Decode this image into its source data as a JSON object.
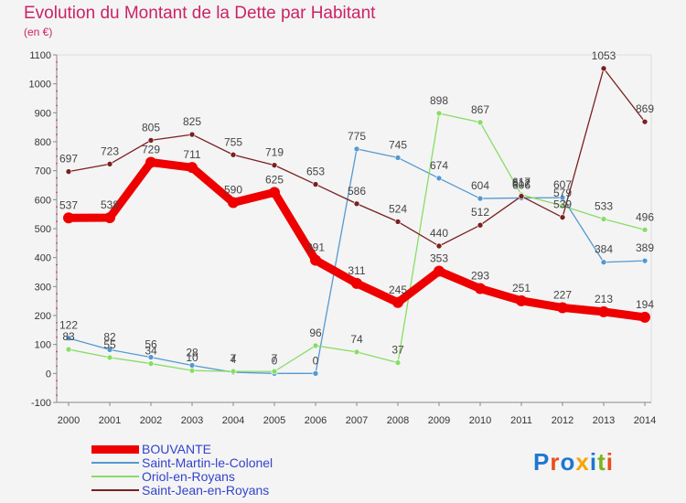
{
  "header": {
    "title": "Evolution du Montant de la Dette par Habitant",
    "unit": "(en €)"
  },
  "logo": {
    "text": "Proxiti",
    "letters": [
      "P",
      "r",
      "o",
      "x",
      "i",
      "t",
      "i"
    ],
    "colors": [
      "#1f77d0",
      "#e94e1b",
      "#1f77d0",
      "#f7a400",
      "#1f77d0",
      "#7ab51d",
      "#e94e1b"
    ]
  },
  "chart_data": {
    "type": "line",
    "title": "Evolution du Montant de la Dette par Habitant",
    "ylabel": "(en €)",
    "x": [
      "2000",
      "2001",
      "2002",
      "2003",
      "2004",
      "2005",
      "2006",
      "2007",
      "2008",
      "2009",
      "2010",
      "2011",
      "2012",
      "2013",
      "2014"
    ],
    "ylim": [
      -100,
      1100
    ],
    "yticks": [
      -100,
      0,
      100,
      200,
      300,
      400,
      500,
      600,
      700,
      800,
      900,
      1000,
      1100
    ],
    "grid": false,
    "legend_position": "bottom-left",
    "series": [
      {
        "name": "BOUVANTE",
        "color": "#ee0000",
        "values": [
          537,
          538,
          729,
          711,
          590,
          625,
          391,
          311,
          245,
          353,
          293,
          251,
          227,
          213,
          194
        ],
        "labels": [
          "537",
          "538",
          "729",
          "711",
          "590",
          "625",
          "391",
          "311",
          "245",
          "353",
          "293",
          "251",
          "227",
          "213",
          "194"
        ]
      },
      {
        "name": "Saint-Martin-le-Colonel",
        "color": "#5599d0",
        "values": [
          122,
          82,
          56,
          28,
          4,
          0,
          0,
          775,
          745,
          674,
          604,
          606,
          607,
          384,
          389
        ],
        "labels": [
          "122",
          "82",
          "56",
          "28",
          "4",
          "0",
          "0",
          "775",
          "745",
          "674",
          "604",
          "606",
          "607",
          "384",
          "389"
        ]
      },
      {
        "name": "Oriol-en-Royans",
        "color": "#88dd66",
        "values": [
          83,
          55,
          34,
          10,
          7,
          7,
          96,
          74,
          37,
          898,
          867,
          617,
          579,
          533,
          496
        ],
        "labels": [
          "83",
          "55",
          "34",
          "10",
          "7",
          "7",
          "96",
          "74",
          "37",
          "898",
          "867",
          "617",
          "579",
          "533",
          "496"
        ]
      },
      {
        "name": "Saint-Jean-en-Royans",
        "color": "#7a2020",
        "values": [
          697,
          723,
          805,
          825,
          755,
          719,
          653,
          586,
          524,
          440,
          512,
          612,
          539,
          1053,
          869
        ],
        "labels": [
          "697",
          "723",
          "805",
          "825",
          "755",
          "719",
          "653",
          "586",
          "524",
          "440",
          "512",
          "612",
          "539",
          "1053",
          "869"
        ]
      }
    ]
  }
}
